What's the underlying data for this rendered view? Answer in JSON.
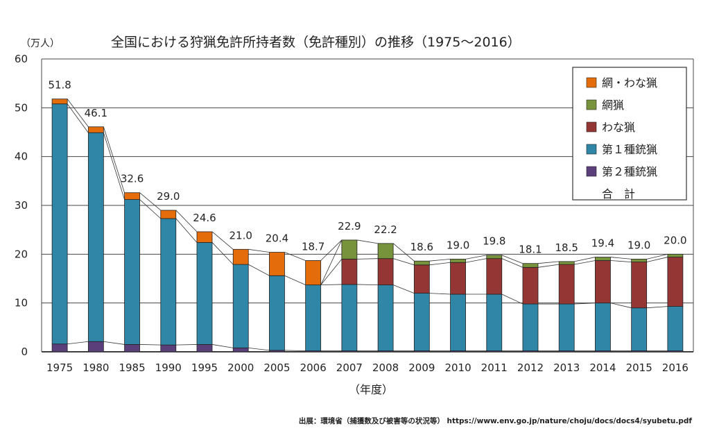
{
  "chart_data": {
    "type": "bar",
    "stacked": true,
    "title": "全国における狩猟免許所持者数（免許種別）の推移（1975～2016）",
    "unit_label": "（万人）",
    "xlabel": "（年度）",
    "ylim": [
      0,
      60
    ],
    "yticks": [
      "0",
      "10",
      "20",
      "30",
      "40",
      "50",
      "60"
    ],
    "grid": true,
    "legend_position": "top-right",
    "categories": [
      "1975",
      "1980",
      "1985",
      "1990",
      "1995",
      "2000",
      "2005",
      "2006",
      "2007",
      "2008",
      "2009",
      "2010",
      "2011",
      "2012",
      "2013",
      "2014",
      "2015",
      "2016"
    ],
    "totals": [
      51.8,
      46.1,
      32.6,
      29.0,
      24.6,
      21.0,
      20.4,
      18.7,
      22.9,
      22.2,
      18.6,
      19.0,
      19.8,
      18.1,
      18.5,
      19.4,
      19.0,
      20.0
    ],
    "total_labels": [
      "51.8",
      "46.1",
      "32.6",
      "29.0",
      "24.6",
      "21.0",
      "20.4",
      "18.7",
      "22.9",
      "22.2",
      "18.6",
      "19.0",
      "19.8",
      "18.1",
      "18.5",
      "19.4",
      "19.0",
      "20.0"
    ],
    "series": [
      {
        "name": "第２種銃猟",
        "color": "#5b3f7a",
        "values": [
          1.6,
          2.1,
          1.5,
          1.4,
          1.5,
          0.8,
          0.3,
          0.2,
          0.2,
          0.2,
          0.2,
          0.2,
          0.2,
          0.2,
          0.2,
          0.2,
          0.2,
          0.2
        ]
      },
      {
        "name": "第１種銃猟",
        "color": "#2f86a6",
        "values": [
          49.2,
          42.8,
          29.7,
          25.9,
          20.9,
          17.1,
          15.3,
          13.5,
          13.6,
          13.5,
          11.8,
          11.6,
          11.6,
          9.6,
          9.6,
          9.8,
          8.8,
          9.1
        ]
      },
      {
        "name": "わな猟",
        "color": "#943634",
        "values": [
          0,
          0,
          0,
          0,
          0,
          0,
          0,
          0,
          5.2,
          5.4,
          5.8,
          6.5,
          7.3,
          7.5,
          8.1,
          8.7,
          9.4,
          10.1
        ]
      },
      {
        "name": "網猟",
        "color": "#77933c",
        "values": [
          0,
          0,
          0,
          0,
          0,
          0,
          0,
          0,
          3.9,
          3.1,
          0.8,
          0.7,
          0.7,
          0.8,
          0.6,
          0.7,
          0.6,
          0.6
        ]
      },
      {
        "name": "網・わな猟",
        "color": "#e46c0a",
        "values": [
          1.0,
          1.2,
          1.4,
          1.7,
          2.2,
          3.1,
          4.8,
          5.0,
          0,
          0,
          0,
          0,
          0,
          0,
          0,
          0,
          0,
          0
        ]
      }
    ],
    "legend_items": [
      "網・わな猟",
      "網猟",
      "わな猟",
      "第１種銃猟",
      "第２種銃猟"
    ],
    "legend_total_label": "合　計"
  },
  "source": "出展：環境省（捕獲数及び被害等の状況等） https://www.env.go.jp/nature/choju/docs/docs4/syubetu.pdf"
}
